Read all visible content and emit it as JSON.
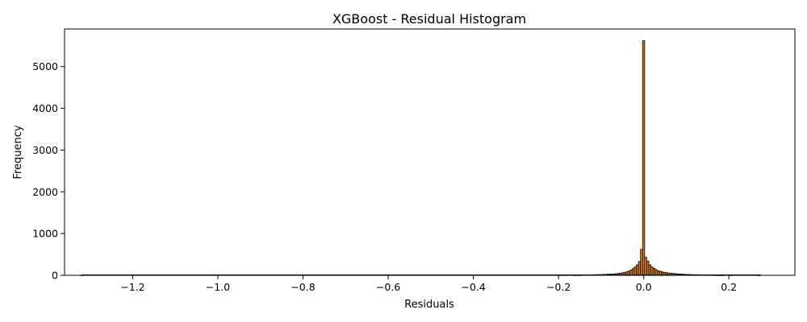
{
  "chart_data": {
    "type": "bar",
    "title": "XGBoost - Residual Histogram",
    "xlabel": "Residuals",
    "ylabel": "Frequency",
    "xlim": [
      -1.36,
      0.355
    ],
    "ylim": [
      0,
      5900
    ],
    "xticks": [
      -1.2,
      -1.0,
      -0.8,
      -0.6,
      -0.4,
      -0.2,
      0.0,
      0.2
    ],
    "xtick_labels": [
      "−1.2",
      "−1.0",
      "−0.8",
      "−0.6",
      "−0.4",
      "−0.2",
      "0.0",
      "0.2"
    ],
    "yticks": [
      0,
      1000,
      2000,
      3000,
      4000,
      5000
    ],
    "ytick_labels": [
      "0",
      "1000",
      "2000",
      "3000",
      "4000",
      "5000"
    ],
    "grid": false,
    "bar_color": "#d97f0f",
    "edge_color": "#000000",
    "bin_width": 0.0049,
    "bins": [
      {
        "x": -0.1325,
        "count": 12
      },
      {
        "x": -0.1276,
        "count": 10
      },
      {
        "x": -0.1227,
        "count": 14
      },
      {
        "x": -0.1178,
        "count": 12
      },
      {
        "x": -0.1129,
        "count": 16
      },
      {
        "x": -0.108,
        "count": 14
      },
      {
        "x": -0.1031,
        "count": 18
      },
      {
        "x": -0.0982,
        "count": 16
      },
      {
        "x": -0.0933,
        "count": 22
      },
      {
        "x": -0.0884,
        "count": 20
      },
      {
        "x": -0.0835,
        "count": 28
      },
      {
        "x": -0.0786,
        "count": 26
      },
      {
        "x": -0.0737,
        "count": 32
      },
      {
        "x": -0.0688,
        "count": 30
      },
      {
        "x": -0.0639,
        "count": 40
      },
      {
        "x": -0.059,
        "count": 45
      },
      {
        "x": -0.0541,
        "count": 52
      },
      {
        "x": -0.0492,
        "count": 60
      },
      {
        "x": -0.0443,
        "count": 70
      },
      {
        "x": -0.0394,
        "count": 85
      },
      {
        "x": -0.0345,
        "count": 100
      },
      {
        "x": -0.0296,
        "count": 125
      },
      {
        "x": -0.0247,
        "count": 160
      },
      {
        "x": -0.0198,
        "count": 200
      },
      {
        "x": -0.0149,
        "count": 250
      },
      {
        "x": -0.01,
        "count": 330
      },
      {
        "x": -0.0051,
        "count": 620
      },
      {
        "x": -0.0002,
        "count": 5620
      },
      {
        "x": 0.0047,
        "count": 430
      },
      {
        "x": 0.0096,
        "count": 340
      },
      {
        "x": 0.0145,
        "count": 250
      },
      {
        "x": 0.0194,
        "count": 200
      },
      {
        "x": 0.0243,
        "count": 165
      },
      {
        "x": 0.0292,
        "count": 135
      },
      {
        "x": 0.0341,
        "count": 110
      },
      {
        "x": 0.039,
        "count": 95
      },
      {
        "x": 0.0439,
        "count": 80
      },
      {
        "x": 0.0488,
        "count": 70
      },
      {
        "x": 0.0537,
        "count": 62
      },
      {
        "x": 0.0586,
        "count": 55
      },
      {
        "x": 0.0635,
        "count": 50
      },
      {
        "x": 0.0684,
        "count": 45
      },
      {
        "x": 0.0733,
        "count": 40
      },
      {
        "x": 0.0782,
        "count": 36
      },
      {
        "x": 0.0831,
        "count": 32
      },
      {
        "x": 0.088,
        "count": 28
      },
      {
        "x": 0.0929,
        "count": 25
      },
      {
        "x": 0.0978,
        "count": 22
      },
      {
        "x": 0.1027,
        "count": 20
      },
      {
        "x": 0.1076,
        "count": 18
      },
      {
        "x": 0.1125,
        "count": 16
      },
      {
        "x": 0.1174,
        "count": 15
      },
      {
        "x": 0.1223,
        "count": 14
      },
      {
        "x": 0.1272,
        "count": 13
      },
      {
        "x": 0.1321,
        "count": 12
      },
      {
        "x": 0.137,
        "count": 11
      },
      {
        "x": 0.1419,
        "count": 10
      },
      {
        "x": 0.1468,
        "count": 10
      },
      {
        "x": 0.1517,
        "count": 9
      },
      {
        "x": 0.1566,
        "count": 8
      },
      {
        "x": 0.1615,
        "count": 7
      },
      {
        "x": 0.1664,
        "count": 6
      },
      {
        "x": 0.1713,
        "count": 5
      },
      {
        "x": 0.1762,
        "count": 4
      },
      {
        "x": 0.1811,
        "count": 3
      },
      {
        "x": 0.186,
        "count": 2
      },
      {
        "x": -0.1914,
        "count": 6
      },
      {
        "x": -0.1816,
        "count": 5
      },
      {
        "x": -0.162,
        "count": 3
      },
      {
        "x": -0.1522,
        "count": 4
      },
      {
        "x": -0.1473,
        "count": 6
      },
      {
        "x": -0.1424,
        "count": 8
      },
      {
        "x": -0.1375,
        "count": 10
      },
      {
        "x": 0.2056,
        "count": 3
      },
      {
        "x": -1.32,
        "count": 1
      },
      {
        "x": 0.27,
        "count": 1
      }
    ]
  }
}
